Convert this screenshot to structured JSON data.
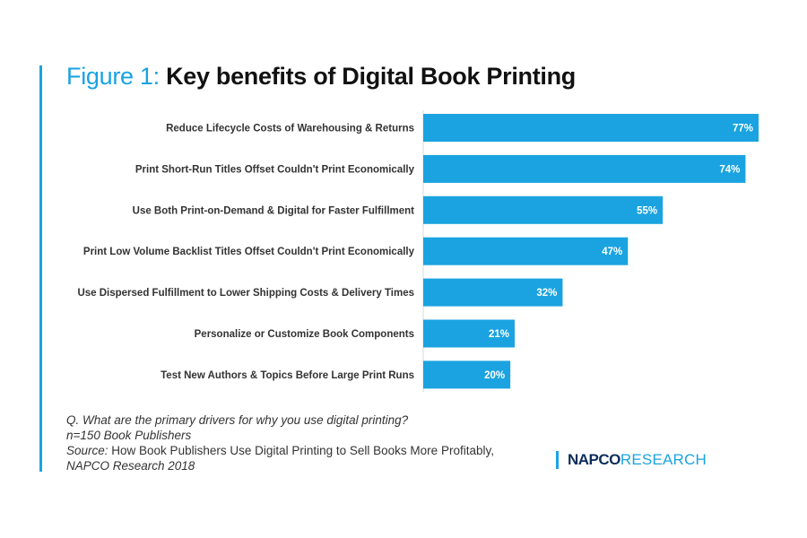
{
  "header": {
    "prefix": "Figure 1:",
    "title": "Key benefits of Digital Book Printing"
  },
  "chart_data": {
    "type": "bar",
    "orientation": "horizontal",
    "categories": [
      "Reduce Lifecycle Costs of Warehousing & Returns",
      "Print Short-Run Titles Offset Couldn't Print Economically",
      "Use Both Print-on-Demand & Digital for Faster Fulfillment",
      "Print Low Volume Backlist Titles Offset Couldn't Print Economically",
      "Use Dispersed Fulfillment to Lower Shipping Costs & Delivery Times",
      "Personalize or Customize Book Components",
      "Test New Authors & Topics Before Large Print Runs"
    ],
    "values": [
      77,
      74,
      55,
      47,
      32,
      21,
      20
    ],
    "data_labels": [
      "77%",
      "74%",
      "55%",
      "47%",
      "32%",
      "21%",
      "20%"
    ],
    "unit": "%",
    "xlim": [
      0,
      77
    ],
    "bar_color": "#1aa3e0",
    "grid": false,
    "legend": "none"
  },
  "footer": {
    "question": "Q. What are the primary drivers for why you use digital printing?",
    "sample": "n=150 Book Publishers",
    "source_label": "Source:",
    "source_text": " How Book Publishers Use Digital Printing to Sell Books More Profitably,",
    "source_org": "NAPCO Research 2018"
  },
  "logo": {
    "napco": "NAPCO",
    "research": "RESEARCH"
  },
  "colors": {
    "accent": "#1aa3e0",
    "logo_navy": "#0c2d5a"
  }
}
